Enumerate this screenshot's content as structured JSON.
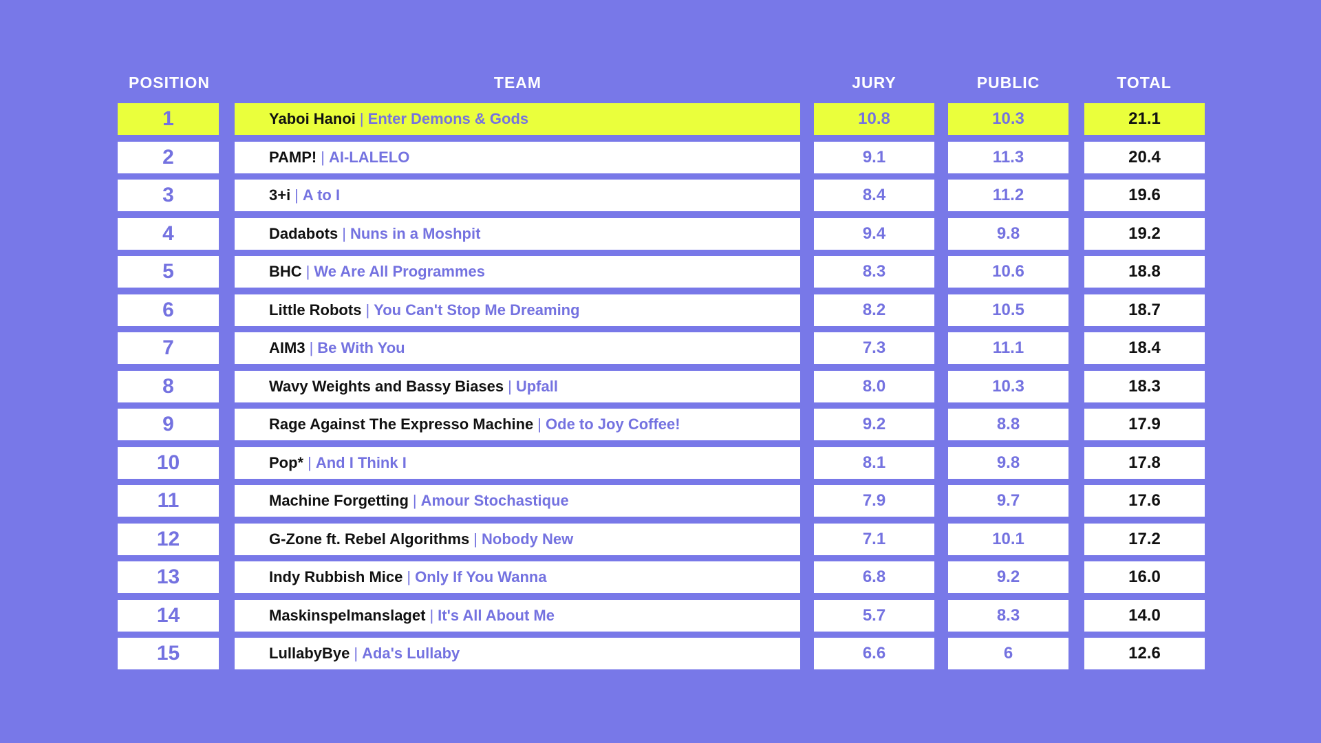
{
  "colors": {
    "background": "#7878e8",
    "accent": "#7472e0",
    "highlight": "#eaff3c",
    "cell": "#ffffff",
    "text_dark": "#111111"
  },
  "headers": {
    "position": "POSITION",
    "team": "TEAM",
    "jury": "JURY",
    "public": "PUBLIC",
    "total": "TOTAL"
  },
  "separator": "|",
  "highlighted_rank": 1,
  "rows": [
    {
      "position": "1",
      "team": "Yaboi Hanoi",
      "song": "Enter Demons & Gods",
      "jury": "10.8",
      "public": "10.3",
      "total": "21.1"
    },
    {
      "position": "2",
      "team": "PAMP!",
      "song": "AI-LALELO",
      "jury": "9.1",
      "public": "11.3",
      "total": "20.4"
    },
    {
      "position": "3",
      "team": "3+i",
      "song": "A to I",
      "jury": "8.4",
      "public": "11.2",
      "total": "19.6"
    },
    {
      "position": "4",
      "team": "Dadabots",
      "song": "Nuns in a Moshpit",
      "jury": "9.4",
      "public": "9.8",
      "total": "19.2"
    },
    {
      "position": "5",
      "team": "BHC",
      "song": "We Are All Programmes",
      "jury": "8.3",
      "public": "10.6",
      "total": "18.8"
    },
    {
      "position": "6",
      "team": "Little Robots",
      "song": "You Can't Stop Me Dreaming",
      "jury": "8.2",
      "public": "10.5",
      "total": "18.7"
    },
    {
      "position": "7",
      "team": "AIM3",
      "song": "Be With You",
      "jury": "7.3",
      "public": "11.1",
      "total": "18.4"
    },
    {
      "position": "8",
      "team": "Wavy Weights and Bassy Biases",
      "song": "Upfall",
      "jury": "8.0",
      "public": "10.3",
      "total": "18.3"
    },
    {
      "position": "9",
      "team": "Rage Against The Expresso Machine",
      "song": "Ode to Joy Coffee!",
      "jury": "9.2",
      "public": "8.8",
      "total": "17.9"
    },
    {
      "position": "10",
      "team": "Pop*",
      "song": "And I Think I",
      "jury": "8.1",
      "public": "9.8",
      "total": "17.8"
    },
    {
      "position": "11",
      "team": "Machine Forgetting",
      "song": "Amour Stochastique",
      "jury": "7.9",
      "public": "9.7",
      "total": "17.6"
    },
    {
      "position": "12",
      "team": "G-Zone ft. Rebel Algorithms",
      "song": "Nobody New",
      "jury": "7.1",
      "public": "10.1",
      "total": "17.2"
    },
    {
      "position": "13",
      "team": "Indy Rubbish Mice",
      "song": "Only If You Wanna",
      "jury": "6.8",
      "public": "9.2",
      "total": "16.0"
    },
    {
      "position": "14",
      "team": "Maskinspelmanslaget",
      "song": "It's All About Me",
      "jury": "5.7",
      "public": "8.3",
      "total": "14.0"
    },
    {
      "position": "15",
      "team": "LullabyBye",
      "song": "Ada's Lullaby",
      "jury": "6.6",
      "public": "6",
      "total": "12.6"
    }
  ]
}
